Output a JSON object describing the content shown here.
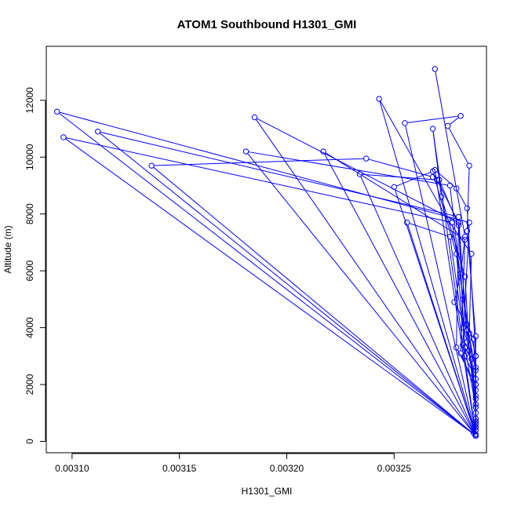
{
  "chart_data": {
    "type": "line",
    "title": "ATOM1 Southbound H1301_GMI",
    "xlabel": "H1301_GMI",
    "ylabel": "Altitude (m)",
    "xlim": [
      0.003088,
      0.003293
    ],
    "ylim": [
      -400,
      13900
    ],
    "x_ticks": [
      "0.00310",
      "0.00315",
      "0.00320",
      "0.00325"
    ],
    "x_tick_values": [
      0.0031,
      0.00315,
      0.0032,
      0.00325
    ],
    "y_ticks": [
      "0",
      "2000",
      "4000",
      "6000",
      "8000",
      "10000",
      "12000"
    ],
    "y_tick_values": [
      0,
      2000,
      4000,
      6000,
      8000,
      10000,
      12000
    ],
    "line_color": "#0000ff",
    "marker": "open-circle",
    "grid": false,
    "legend": "none",
    "series": [
      {
        "x": [
          0.003269,
          0.003283,
          0.003281,
          0.003278,
          0.003287,
          0.003288,
          0.003288,
          0.003287,
          0.003288,
          0.003243,
          0.003275,
          0.003286,
          0.003285,
          0.003288,
          0.003288,
          0.003288,
          0.003288,
          0.003093,
          0.003285,
          0.003282,
          0.003286,
          0.003288,
          0.003288,
          0.003255,
          0.003281,
          0.003275,
          0.003285,
          0.003284,
          0.003288,
          0.003288,
          0.003288,
          0.003185,
          0.00328,
          0.003279,
          0.003288,
          0.003288,
          0.003288,
          0.003112,
          0.00328,
          0.003284,
          0.003288,
          0.003288,
          0.003288,
          0.003268,
          0.003272,
          0.003283,
          0.003285,
          0.003288,
          0.003288,
          0.003096,
          0.003277,
          0.003284,
          0.003288,
          0.003288,
          0.003288,
          0.003181,
          0.003276,
          0.003282,
          0.003288,
          0.003288,
          0.003288,
          0.003217,
          0.003283,
          0.003281,
          0.003288,
          0.003288,
          0.003288,
          0.003137,
          0.003237,
          0.003268,
          0.003271,
          0.00328,
          0.003284,
          0.003288,
          0.003288,
          0.003288,
          0.003234,
          0.00327,
          0.00328,
          0.003283,
          0.003288,
          0.003288,
          0.003288,
          0.00325,
          0.003268,
          0.003279,
          0.003283,
          0.003288,
          0.003288,
          0.003256,
          0.003276,
          0.003282,
          0.003288,
          0.003288,
          0.003288,
          0.003269,
          0.003279,
          0.003284,
          0.003288,
          0.003288
        ],
        "y": [
          13100,
          7200,
          5900,
          4900,
          3600,
          2000,
          800,
          300,
          200,
          12050,
          7800,
          6600,
          3800,
          1500,
          500,
          250,
          200,
          11600,
          7700,
          3400,
          2900,
          1200,
          200,
          11200,
          11450,
          11100,
          9700,
          7400,
          3700,
          700,
          200,
          11400,
          7700,
          3300,
          2000,
          600,
          200,
          10900,
          7900,
          3500,
          1600,
          400,
          200,
          11000,
          8600,
          5800,
          3200,
          1000,
          200,
          10700,
          7700,
          4100,
          2500,
          600,
          200,
          10200,
          9000,
          5000,
          3000,
          800,
          200,
          10200,
          7100,
          3100,
          1800,
          500,
          200,
          9700,
          9950,
          9300,
          9200,
          7600,
          3900,
          1300,
          400,
          200,
          9400,
          9200,
          7700,
          3000,
          2200,
          700,
          200,
          8950,
          9500,
          6600,
          3300,
          1200,
          200,
          7700,
          7200,
          4000,
          2600,
          700,
          200,
          9550,
          8900,
          8200,
          3000,
          200
        ]
      }
    ]
  }
}
